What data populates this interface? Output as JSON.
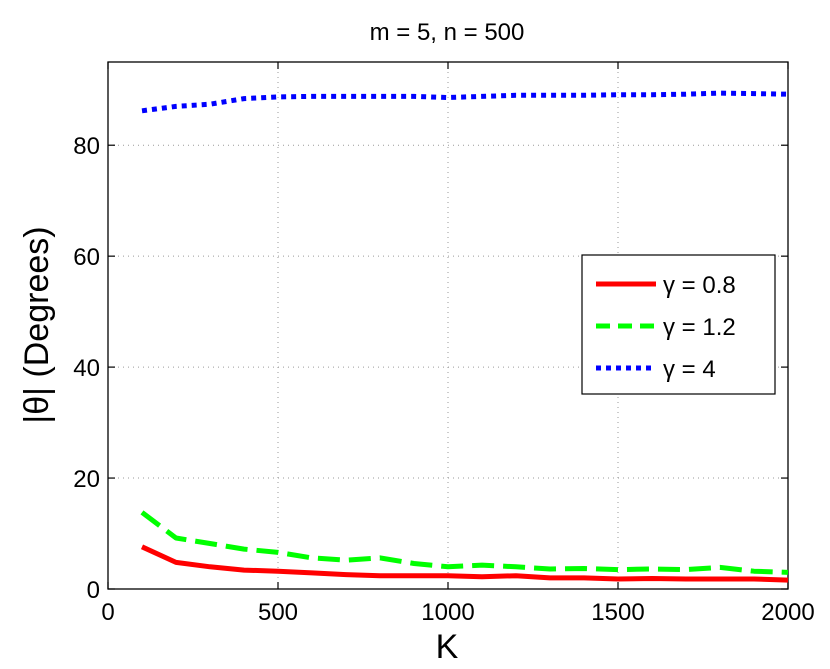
{
  "chart_data": {
    "type": "line",
    "title": "m = 5, n = 500",
    "xlabel": "K",
    "ylabel": "|θ| (Degrees)",
    "xlim": [
      0,
      2000
    ],
    "ylim": [
      0,
      95
    ],
    "xticks": [
      0,
      500,
      1000,
      1500,
      2000
    ],
    "yticks": [
      0,
      20,
      40,
      60,
      80
    ],
    "grid": true,
    "legend_position": "right-middle",
    "x": [
      100,
      200,
      300,
      400,
      500,
      600,
      700,
      800,
      900,
      1000,
      1100,
      1200,
      1300,
      1400,
      1500,
      1600,
      1700,
      1800,
      1900,
      2000
    ],
    "series": [
      {
        "name": "γ = 0.8",
        "color": "#ff0000",
        "style": "solid",
        "values": [
          7.6,
          4.8,
          4.0,
          3.4,
          3.2,
          2.9,
          2.6,
          2.4,
          2.4,
          2.4,
          2.2,
          2.4,
          2.0,
          2.0,
          1.8,
          1.9,
          1.8,
          1.8,
          1.8,
          1.6
        ]
      },
      {
        "name": "γ = 1.2",
        "color": "#00ff00",
        "style": "dashed",
        "values": [
          13.8,
          9.2,
          8.2,
          7.2,
          6.6,
          5.6,
          5.2,
          5.6,
          4.6,
          4.0,
          4.3,
          4.0,
          3.6,
          3.7,
          3.5,
          3.6,
          3.5,
          3.9,
          3.2,
          3.0
        ]
      },
      {
        "name": "γ = 4",
        "color": "#0000ff",
        "style": "dotted",
        "values": [
          86.2,
          87.0,
          87.4,
          88.4,
          88.7,
          88.8,
          88.8,
          88.8,
          88.8,
          88.6,
          88.8,
          89.0,
          89.0,
          89.0,
          89.1,
          89.1,
          89.2,
          89.4,
          89.3,
          89.2
        ]
      }
    ]
  }
}
